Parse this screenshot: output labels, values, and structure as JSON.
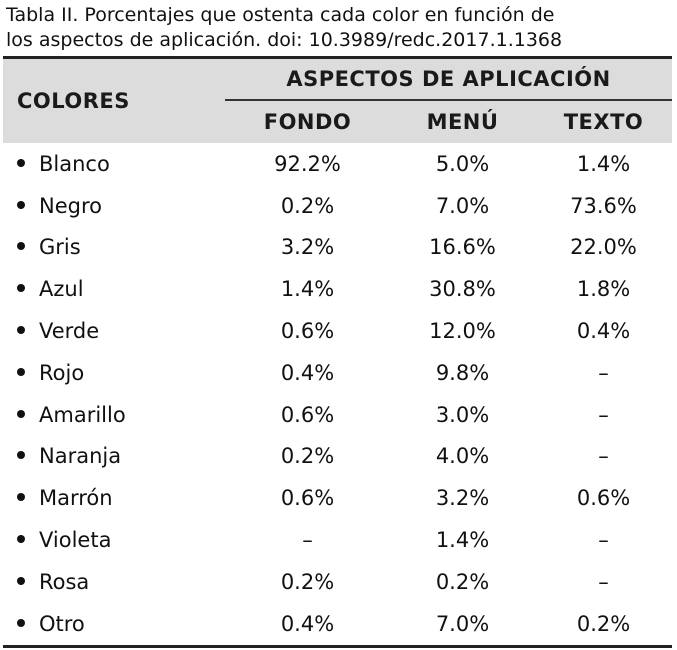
{
  "caption": {
    "line1": "Tabla II. Porcentajes que ostenta cada color en función de",
    "line2": "los aspectos de aplicación. doi: 10.3989/redc.2017.1.1368"
  },
  "table": {
    "header": {
      "colores": "COLORES",
      "group": "ASPECTOS DE APLICACIÓN",
      "fondo": "FONDO",
      "menu": "MENÚ",
      "texto": "TEXTO"
    },
    "rows": [
      {
        "color": "Blanco",
        "fondo": "92.2%",
        "menu": "5.0%",
        "texto": "1.4%"
      },
      {
        "color": "Negro",
        "fondo": "0.2%",
        "menu": "7.0%",
        "texto": "73.6%"
      },
      {
        "color": "Gris",
        "fondo": "3.2%",
        "menu": "16.6%",
        "texto": "22.0%"
      },
      {
        "color": "Azul",
        "fondo": "1.4%",
        "menu": "30.8%",
        "texto": "1.8%"
      },
      {
        "color": "Verde",
        "fondo": "0.6%",
        "menu": "12.0%",
        "texto": "0.4%"
      },
      {
        "color": "Rojo",
        "fondo": "0.4%",
        "menu": "9.8%",
        "texto": "–"
      },
      {
        "color": "Amarillo",
        "fondo": "0.6%",
        "menu": "3.0%",
        "texto": "–"
      },
      {
        "color": "Naranja",
        "fondo": "0.2%",
        "menu": "4.0%",
        "texto": "–"
      },
      {
        "color": "Marrón",
        "fondo": "0.6%",
        "menu": "3.2%",
        "texto": "0.6%"
      },
      {
        "color": "Violeta",
        "fondo": "–",
        "menu": "1.4%",
        "texto": "–"
      },
      {
        "color": "Rosa",
        "fondo": "0.2%",
        "menu": "0.2%",
        "texto": "–"
      },
      {
        "color": "Otro",
        "fondo": "0.4%",
        "menu": "7.0%",
        "texto": "0.2%"
      }
    ]
  },
  "chart_data": {
    "type": "table",
    "columns": [
      "COLORES",
      "FONDO",
      "MENÚ",
      "TEXTO"
    ],
    "rows": [
      [
        "Blanco",
        "92.2%",
        "5.0%",
        "1.4%"
      ],
      [
        "Negro",
        "0.2%",
        "7.0%",
        "73.6%"
      ],
      [
        "Gris",
        "3.2%",
        "16.6%",
        "22.0%"
      ],
      [
        "Azul",
        "1.4%",
        "30.8%",
        "1.8%"
      ],
      [
        "Verde",
        "0.6%",
        "12.0%",
        "0.4%"
      ],
      [
        "Rojo",
        "0.4%",
        "9.8%",
        "–"
      ],
      [
        "Amarillo",
        "0.6%",
        "3.0%",
        "–"
      ],
      [
        "Naranja",
        "0.2%",
        "4.0%",
        "–"
      ],
      [
        "Marrón",
        "0.6%",
        "3.2%",
        "0.6%"
      ],
      [
        "Violeta",
        "–",
        "1.4%",
        "–"
      ],
      [
        "Rosa",
        "0.2%",
        "0.2%",
        "–"
      ],
      [
        "Otro",
        "0.4%",
        "7.0%",
        "0.2%"
      ]
    ]
  }
}
